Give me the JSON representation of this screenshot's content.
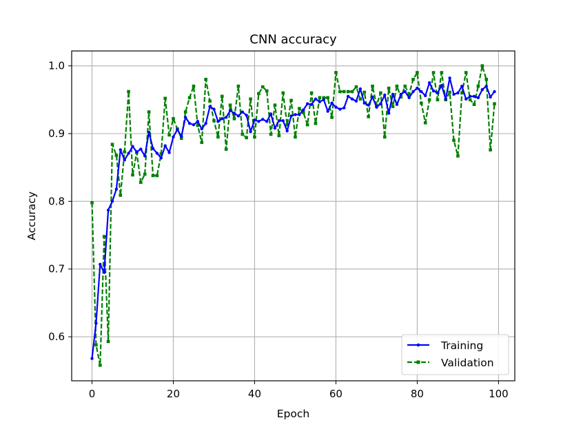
{
  "chart_data": {
    "type": "line",
    "title": "CNN accuracy",
    "xlabel": "Epoch",
    "ylabel": "Accuracy",
    "xlim": [
      -5,
      104
    ],
    "ylim": [
      0.535,
      1.022
    ],
    "xticks": [
      0,
      20,
      40,
      60,
      80,
      100
    ],
    "xtick_labels": [
      "0",
      "20",
      "40",
      "60",
      "80",
      "100"
    ],
    "yticks": [
      0.6,
      0.7,
      0.8,
      0.9,
      1.0
    ],
    "ytick_labels": [
      "0.6",
      "0.7",
      "0.8",
      "0.9",
      "1.0"
    ],
    "grid": true,
    "legend_position": "bottom-right",
    "x": [
      0,
      1,
      2,
      3,
      4,
      5,
      6,
      7,
      8,
      9,
      10,
      11,
      12,
      13,
      14,
      15,
      16,
      17,
      18,
      19,
      20,
      21,
      22,
      23,
      24,
      25,
      26,
      27,
      28,
      29,
      30,
      31,
      32,
      33,
      34,
      35,
      36,
      37,
      38,
      39,
      40,
      41,
      42,
      43,
      44,
      45,
      46,
      47,
      48,
      49,
      50,
      51,
      52,
      53,
      54,
      55,
      56,
      57,
      58,
      59,
      60,
      61,
      62,
      63,
      64,
      65,
      66,
      67,
      68,
      69,
      70,
      71,
      72,
      73,
      74,
      75,
      76,
      77,
      78,
      79,
      80,
      81,
      82,
      83,
      84,
      85,
      86,
      87,
      88,
      89,
      90,
      91,
      92,
      93,
      94,
      95,
      96,
      97,
      98,
      99
    ],
    "series": [
      {
        "name": "Training",
        "color": "#0000ff",
        "linestyle": "solid",
        "marker": "dot",
        "values": [
          0.568,
          0.62,
          0.707,
          0.695,
          0.787,
          0.8,
          0.818,
          0.876,
          0.861,
          0.871,
          0.881,
          0.873,
          0.877,
          0.867,
          0.902,
          0.878,
          0.871,
          0.864,
          0.882,
          0.872,
          0.895,
          0.906,
          0.896,
          0.924,
          0.915,
          0.913,
          0.918,
          0.907,
          0.915,
          0.94,
          0.936,
          0.918,
          0.922,
          0.924,
          0.934,
          0.93,
          0.926,
          0.932,
          0.927,
          0.903,
          0.92,
          0.918,
          0.921,
          0.918,
          0.929,
          0.908,
          0.919,
          0.919,
          0.904,
          0.926,
          0.928,
          0.928,
          0.935,
          0.944,
          0.943,
          0.951,
          0.947,
          0.95,
          0.933,
          0.945,
          0.939,
          0.936,
          0.938,
          0.955,
          0.951,
          0.948,
          0.966,
          0.945,
          0.942,
          0.954,
          0.939,
          0.944,
          0.957,
          0.93,
          0.958,
          0.943,
          0.958,
          0.962,
          0.953,
          0.962,
          0.967,
          0.962,
          0.956,
          0.975,
          0.963,
          0.96,
          0.971,
          0.951,
          0.982,
          0.958,
          0.96,
          0.97,
          0.951,
          0.955,
          0.955,
          0.953,
          0.965,
          0.97,
          0.954,
          0.962
        ]
      },
      {
        "name": "Validation",
        "color": "#008000",
        "linestyle": "dashed",
        "marker": "square",
        "values": [
          0.798,
          0.588,
          0.558,
          0.748,
          0.593,
          0.884,
          0.868,
          0.809,
          0.873,
          0.962,
          0.839,
          0.872,
          0.828,
          0.84,
          0.932,
          0.838,
          0.838,
          0.87,
          0.952,
          0.898,
          0.922,
          0.907,
          0.893,
          0.932,
          0.953,
          0.97,
          0.912,
          0.887,
          0.98,
          0.948,
          0.919,
          0.895,
          0.955,
          0.877,
          0.942,
          0.922,
          0.97,
          0.899,
          0.894,
          0.951,
          0.895,
          0.959,
          0.969,
          0.963,
          0.899,
          0.942,
          0.897,
          0.96,
          0.913,
          0.949,
          0.895,
          0.937,
          0.931,
          0.913,
          0.96,
          0.915,
          0.953,
          0.953,
          0.953,
          0.924,
          0.99,
          0.962,
          0.962,
          0.962,
          0.962,
          0.969,
          0.951,
          0.961,
          0.925,
          0.97,
          0.942,
          0.96,
          0.895,
          0.967,
          0.94,
          0.97,
          0.954,
          0.97,
          0.958,
          0.98,
          0.99,
          0.945,
          0.916,
          0.95,
          0.99,
          0.95,
          0.99,
          0.95,
          0.961,
          0.89,
          0.867,
          0.96,
          0.99,
          0.95,
          0.943,
          0.97,
          1.0,
          0.98,
          0.876,
          0.944
        ]
      }
    ]
  }
}
